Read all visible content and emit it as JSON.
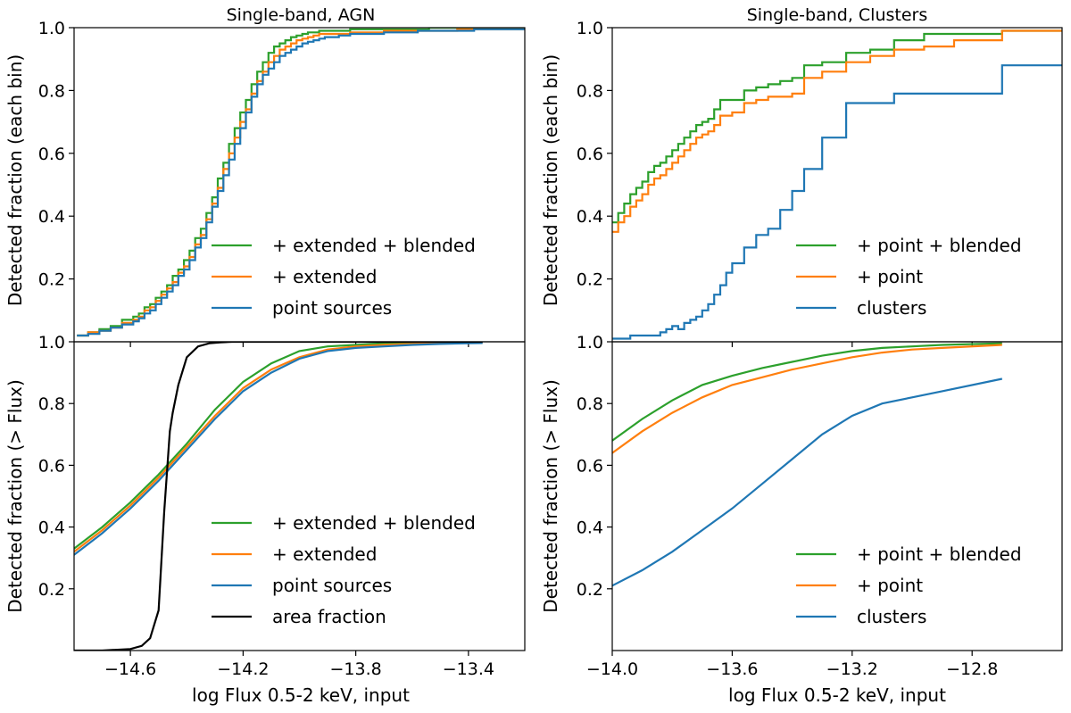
{
  "figure": {
    "xlabel": "log Flux 0.5-2 keV, input",
    "ylabel_top": "Detected fraction (each bin)",
    "ylabel_bottom": "Detected fraction (> Flux)"
  },
  "colors": {
    "green": "#2ca02c",
    "orange": "#ff7f0e",
    "blue": "#1f77b4",
    "black": "#000000"
  },
  "chart_data": [
    {
      "id": "agn_bin",
      "type": "line",
      "step": true,
      "title": "Single-band, AGN",
      "xlabel": "",
      "ylabel": "Detected fraction (each bin)",
      "xlim": [
        -14.8,
        -13.2
      ],
      "ylim": [
        0.0,
        1.0
      ],
      "xticks": [
        -14.6,
        -14.2,
        -13.8,
        -13.4
      ],
      "xtick_labels": [],
      "yticks": [
        0.2,
        0.4,
        0.6,
        0.8,
        1.0
      ],
      "ytick_labels": [
        "0.2",
        "0.4",
        "0.6",
        "0.8",
        "1.0"
      ],
      "legend_position": "lower-right",
      "x": [
        -14.79,
        -14.75,
        -14.71,
        -14.67,
        -14.63,
        -14.59,
        -14.57,
        -14.55,
        -14.53,
        -14.51,
        -14.49,
        -14.47,
        -14.45,
        -14.43,
        -14.41,
        -14.39,
        -14.37,
        -14.35,
        -14.33,
        -14.31,
        -14.29,
        -14.27,
        -14.25,
        -14.23,
        -14.21,
        -14.19,
        -14.17,
        -14.15,
        -14.13,
        -14.11,
        -14.09,
        -14.07,
        -14.05,
        -14.03,
        -14.01,
        -13.99,
        -13.97,
        -13.95,
        -13.93,
        -13.91,
        -13.89,
        -13.86,
        -13.82,
        -13.78,
        -13.74,
        -13.7,
        -13.66,
        -13.62,
        -13.58,
        -13.54,
        -13.5,
        -13.44,
        -13.38,
        -13.32
      ],
      "series": [
        {
          "name": "+ extended + blended",
          "color": "#2ca02c",
          "values": [
            0.02,
            0.03,
            0.04,
            0.05,
            0.07,
            0.08,
            0.09,
            0.11,
            0.12,
            0.14,
            0.16,
            0.18,
            0.21,
            0.23,
            0.26,
            0.29,
            0.33,
            0.36,
            0.41,
            0.46,
            0.52,
            0.57,
            0.63,
            0.68,
            0.73,
            0.77,
            0.82,
            0.86,
            0.89,
            0.92,
            0.94,
            0.95,
            0.96,
            0.97,
            0.975,
            0.98,
            0.985,
            0.985,
            0.99,
            0.99,
            0.99,
            0.99,
            0.995,
            0.995,
            0.995,
            0.995,
            0.995,
            0.995,
            0.995,
            1.0,
            1.0,
            1.0,
            1.0,
            1.0
          ]
        },
        {
          "name": "+ extended",
          "color": "#ff7f0e",
          "values": [
            0.02,
            0.03,
            0.035,
            0.045,
            0.06,
            0.07,
            0.08,
            0.1,
            0.11,
            0.13,
            0.15,
            0.17,
            0.19,
            0.22,
            0.24,
            0.27,
            0.31,
            0.34,
            0.39,
            0.44,
            0.49,
            0.55,
            0.6,
            0.65,
            0.7,
            0.74,
            0.79,
            0.83,
            0.86,
            0.89,
            0.91,
            0.93,
            0.94,
            0.95,
            0.96,
            0.965,
            0.97,
            0.975,
            0.98,
            0.98,
            0.98,
            0.98,
            0.985,
            0.985,
            0.985,
            0.99,
            0.99,
            0.99,
            0.99,
            0.99,
            0.99,
            0.995,
            0.995,
            0.995
          ]
        },
        {
          "name": "point sources",
          "color": "#1f77b4",
          "values": [
            0.02,
            0.025,
            0.035,
            0.045,
            0.055,
            0.065,
            0.075,
            0.09,
            0.1,
            0.12,
            0.14,
            0.16,
            0.18,
            0.21,
            0.23,
            0.26,
            0.3,
            0.33,
            0.38,
            0.43,
            0.48,
            0.53,
            0.58,
            0.63,
            0.68,
            0.73,
            0.78,
            0.82,
            0.85,
            0.87,
            0.89,
            0.91,
            0.92,
            0.93,
            0.94,
            0.95,
            0.955,
            0.96,
            0.965,
            0.97,
            0.97,
            0.975,
            0.98,
            0.98,
            0.98,
            0.985,
            0.985,
            0.985,
            0.99,
            0.99,
            0.99,
            0.99,
            0.995,
            0.995
          ]
        }
      ]
    },
    {
      "id": "clusters_bin",
      "type": "line",
      "step": true,
      "title": "Single-band, Clusters",
      "xlabel": "",
      "ylabel": "Detected fraction (each bin)",
      "xlim": [
        -14.0,
        -12.5
      ],
      "ylim": [
        0.0,
        1.0
      ],
      "xticks": [
        -13.6,
        -13.2,
        -12.8
      ],
      "xtick_labels": [],
      "yticks": [
        0.2,
        0.4,
        0.6,
        0.8,
        1.0
      ],
      "ytick_labels": [
        "0.2",
        "0.4",
        "0.6",
        "0.8",
        "1.0"
      ],
      "legend_position": "lower-right",
      "x": [
        -14.0,
        -13.98,
        -13.96,
        -13.94,
        -13.92,
        -13.9,
        -13.88,
        -13.86,
        -13.84,
        -13.82,
        -13.8,
        -13.78,
        -13.76,
        -13.74,
        -13.72,
        -13.7,
        -13.68,
        -13.66,
        -13.64,
        -13.62,
        -13.6,
        -13.56,
        -13.52,
        -13.48,
        -13.44,
        -13.4,
        -13.36,
        -13.3,
        -13.22,
        -13.14,
        -13.06,
        -12.96,
        -12.86,
        -12.7
      ],
      "series": [
        {
          "name": "+ point + blended",
          "color": "#2ca02c",
          "values": [
            0.38,
            0.41,
            0.44,
            0.47,
            0.49,
            0.51,
            0.54,
            0.56,
            0.57,
            0.59,
            0.61,
            0.63,
            0.65,
            0.67,
            0.69,
            0.7,
            0.71,
            0.74,
            0.77,
            0.77,
            0.77,
            0.8,
            0.81,
            0.82,
            0.83,
            0.84,
            0.88,
            0.89,
            0.92,
            0.93,
            0.96,
            0.98,
            0.98,
            0.99
          ]
        },
        {
          "name": "+ point",
          "color": "#ff7f0e",
          "values": [
            0.35,
            0.38,
            0.4,
            0.43,
            0.45,
            0.47,
            0.5,
            0.52,
            0.53,
            0.55,
            0.57,
            0.59,
            0.61,
            0.63,
            0.65,
            0.66,
            0.67,
            0.69,
            0.72,
            0.72,
            0.73,
            0.76,
            0.77,
            0.78,
            0.78,
            0.79,
            0.84,
            0.86,
            0.89,
            0.91,
            0.93,
            0.94,
            0.96,
            0.99
          ]
        },
        {
          "name": "clusters",
          "color": "#1f77b4",
          "values": [
            0.01,
            0.01,
            0.01,
            0.02,
            0.02,
            0.02,
            0.02,
            0.02,
            0.03,
            0.04,
            0.05,
            0.04,
            0.06,
            0.07,
            0.08,
            0.1,
            0.12,
            0.15,
            0.18,
            0.22,
            0.25,
            0.3,
            0.34,
            0.36,
            0.42,
            0.48,
            0.55,
            0.65,
            0.76,
            0.76,
            0.79,
            0.79,
            0.79,
            0.88
          ]
        }
      ]
    },
    {
      "id": "agn_cum",
      "type": "line",
      "step": false,
      "title": "",
      "xlabel": "log Flux 0.5-2 keV, input",
      "ylabel": "Detected fraction (> Flux)",
      "xlim": [
        -14.8,
        -13.2
      ],
      "ylim": [
        0.0,
        1.0
      ],
      "xticks": [
        -14.6,
        -14.2,
        -13.8,
        -13.4
      ],
      "xtick_labels": [
        "−14.6",
        "−14.2",
        "−13.8",
        "−13.4"
      ],
      "yticks": [
        0.2,
        0.4,
        0.6,
        0.8,
        1.0
      ],
      "ytick_labels": [
        "0.2",
        "0.4",
        "0.6",
        "0.8",
        "1.0"
      ],
      "legend_position": "lower-right",
      "series": [
        {
          "name": "+ extended + blended",
          "color": "#2ca02c",
          "x": [
            -14.8,
            -14.7,
            -14.6,
            -14.5,
            -14.4,
            -14.3,
            -14.2,
            -14.1,
            -14.0,
            -13.9,
            -13.8,
            -13.7,
            -13.6,
            -13.5,
            -13.4,
            -13.35
          ],
          "values": [
            0.33,
            0.4,
            0.48,
            0.57,
            0.67,
            0.78,
            0.87,
            0.93,
            0.97,
            0.985,
            0.99,
            0.995,
            0.997,
            0.998,
            0.999,
            1.0
          ]
        },
        {
          "name": "+ extended",
          "color": "#ff7f0e",
          "x": [
            -14.8,
            -14.7,
            -14.6,
            -14.5,
            -14.4,
            -14.3,
            -14.2,
            -14.1,
            -14.0,
            -13.9,
            -13.8,
            -13.7,
            -13.6,
            -13.5,
            -13.4,
            -13.35
          ],
          "values": [
            0.32,
            0.39,
            0.47,
            0.56,
            0.66,
            0.76,
            0.85,
            0.91,
            0.95,
            0.975,
            0.985,
            0.99,
            0.993,
            0.995,
            0.997,
            0.998
          ]
        },
        {
          "name": "point sources",
          "color": "#1f77b4",
          "x": [
            -14.8,
            -14.7,
            -14.6,
            -14.5,
            -14.4,
            -14.3,
            -14.2,
            -14.1,
            -14.0,
            -13.9,
            -13.8,
            -13.7,
            -13.6,
            -13.5,
            -13.4,
            -13.35
          ],
          "values": [
            0.31,
            0.38,
            0.46,
            0.55,
            0.65,
            0.75,
            0.84,
            0.9,
            0.945,
            0.97,
            0.98,
            0.985,
            0.99,
            0.993,
            0.995,
            0.996
          ]
        },
        {
          "name": "area fraction",
          "color": "#000000",
          "x": [
            -14.8,
            -14.7,
            -14.6,
            -14.56,
            -14.53,
            -14.5,
            -14.48,
            -14.46,
            -14.45,
            -14.43,
            -14.4,
            -14.36,
            -14.32,
            -14.28,
            -14.24,
            -14.2,
            -14.1,
            -13.9,
            -13.7,
            -13.5,
            -13.35
          ],
          "values": [
            0.0,
            0.0,
            0.005,
            0.015,
            0.04,
            0.13,
            0.45,
            0.71,
            0.77,
            0.86,
            0.95,
            0.985,
            0.995,
            0.998,
            1.0,
            1.0,
            1.0,
            1.0,
            1.0,
            1.0,
            1.0
          ]
        }
      ]
    },
    {
      "id": "clusters_cum",
      "type": "line",
      "step": false,
      "title": "",
      "xlabel": "log Flux 0.5-2 keV, input",
      "ylabel": "Detected fraction (> Flux)",
      "xlim": [
        -14.0,
        -12.5
      ],
      "ylim": [
        0.0,
        1.0
      ],
      "xticks": [
        -14.0,
        -13.6,
        -13.2,
        -12.8
      ],
      "xtick_labels": [
        "−14.0",
        "−13.6",
        "−13.2",
        "−12.8"
      ],
      "yticks": [
        0.2,
        0.4,
        0.6,
        0.8,
        1.0
      ],
      "ytick_labels": [
        "0.2",
        "0.4",
        "0.6",
        "0.8",
        "1.0"
      ],
      "legend_position": "lower-right",
      "series": [
        {
          "name": "+ point + blended",
          "color": "#2ca02c",
          "x": [
            -14.0,
            -13.9,
            -13.8,
            -13.7,
            -13.6,
            -13.5,
            -13.4,
            -13.3,
            -13.2,
            -13.1,
            -13.0,
            -12.9,
            -12.7
          ],
          "values": [
            0.68,
            0.75,
            0.81,
            0.86,
            0.89,
            0.915,
            0.935,
            0.955,
            0.97,
            0.98,
            0.985,
            0.99,
            0.995
          ]
        },
        {
          "name": "+ point",
          "color": "#ff7f0e",
          "x": [
            -14.0,
            -13.9,
            -13.8,
            -13.7,
            -13.6,
            -13.5,
            -13.4,
            -13.3,
            -13.2,
            -13.1,
            -13.0,
            -12.9,
            -12.7
          ],
          "values": [
            0.64,
            0.71,
            0.77,
            0.82,
            0.86,
            0.885,
            0.91,
            0.93,
            0.95,
            0.965,
            0.975,
            0.98,
            0.99
          ]
        },
        {
          "name": "clusters",
          "color": "#1f77b4",
          "x": [
            -14.0,
            -13.9,
            -13.8,
            -13.7,
            -13.6,
            -13.5,
            -13.4,
            -13.3,
            -13.2,
            -13.1,
            -13.0,
            -12.9,
            -12.7
          ],
          "values": [
            0.21,
            0.26,
            0.32,
            0.39,
            0.46,
            0.54,
            0.62,
            0.7,
            0.76,
            0.8,
            0.82,
            0.84,
            0.88
          ]
        }
      ]
    }
  ]
}
